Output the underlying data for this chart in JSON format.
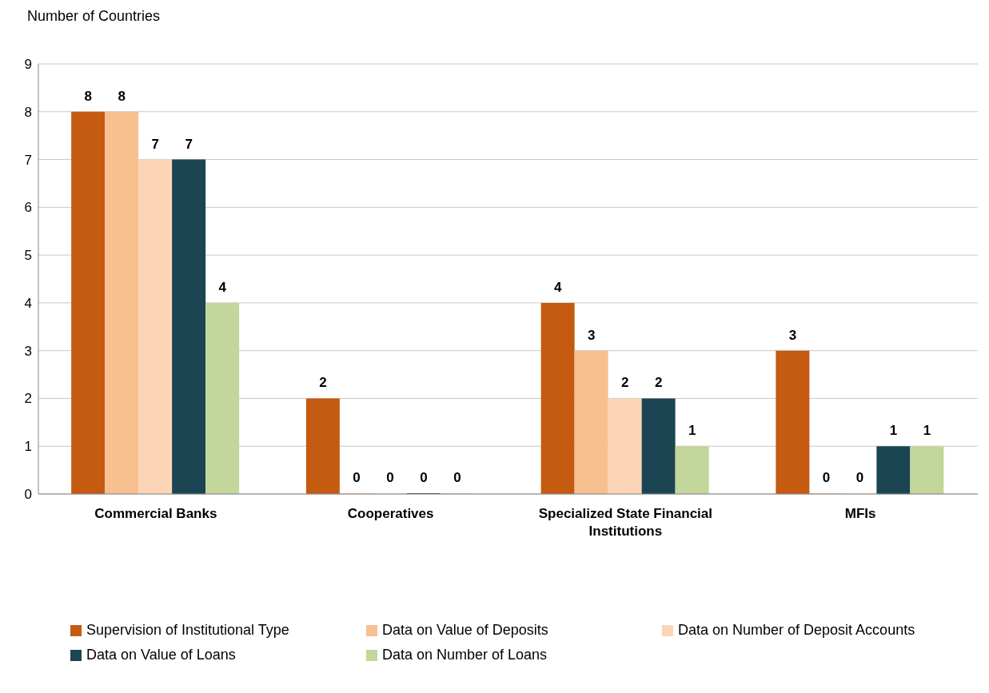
{
  "chart_data": {
    "type": "bar",
    "ylabel": "Number of Countries",
    "categories": [
      "Commercial Banks",
      "Cooperatives",
      "Specialized State Financial Institutions",
      "MFIs"
    ],
    "series": [
      {
        "name": "Supervision of Institutional Type",
        "color": "#c55a11",
        "values": [
          8,
          2,
          4,
          3
        ]
      },
      {
        "name": "Data on Value of Deposits",
        "color": "#f8bf8f",
        "values": [
          8,
          0,
          3,
          0
        ]
      },
      {
        "name": "Data on Number of Deposit Accounts",
        "color": "#fbd5b5",
        "values": [
          7,
          0,
          2,
          0
        ]
      },
      {
        "name": "Data on Value of Loans",
        "color": "#1b4552",
        "values": [
          7,
          0,
          2,
          1
        ]
      },
      {
        "name": "Data on Number of Loans",
        "color": "#c3d69b",
        "values": [
          4,
          0,
          1,
          1
        ]
      }
    ],
    "ylim": [
      0,
      9
    ],
    "yticks": [
      0,
      1,
      2,
      3,
      4,
      5,
      6,
      7,
      8,
      9
    ],
    "grid": "y",
    "data_labels": true,
    "legend": "bottom"
  }
}
